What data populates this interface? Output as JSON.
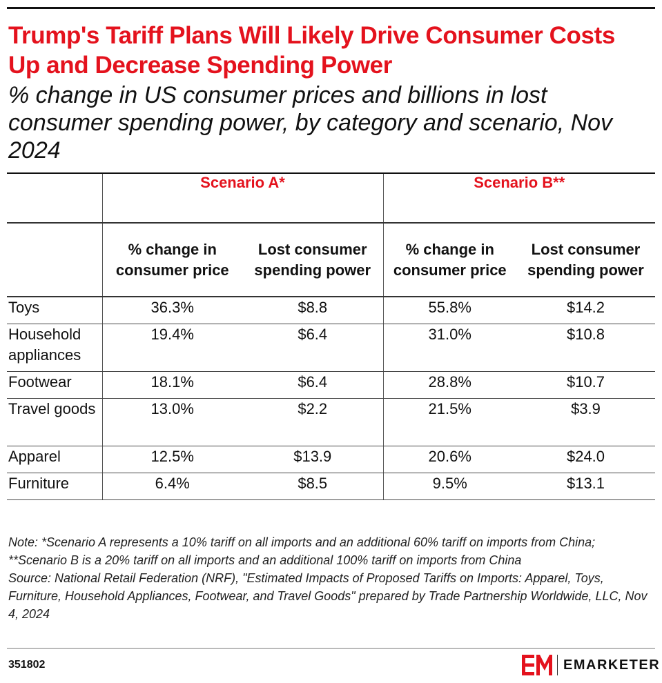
{
  "header": {
    "title": "Trump's Tariff Plans Will Likely Drive Consumer Costs Up and Decrease Spending Power",
    "subtitle": "% change in US consumer prices and billions in lost consumer spending power, by category and scenario, Nov 2024"
  },
  "chart_data": {
    "type": "table",
    "title": "Trump's Tariff Plans Will Likely Drive Consumer Costs Up and Decrease Spending Power",
    "subtitle": "% change in US consumer prices and billions in lost consumer spending power, by category and scenario, Nov 2024",
    "scenarios": [
      "Scenario A*",
      "Scenario B**"
    ],
    "columns": [
      "% change in consumer price",
      "Lost consumer spending power",
      "% change in consumer price",
      "Lost consumer spending power"
    ],
    "rows": [
      {
        "category": "Toys",
        "values": [
          "36.3%",
          "$8.8",
          "55.8%",
          "$14.2"
        ]
      },
      {
        "category": "Household appliances",
        "values": [
          "19.4%",
          "$6.4",
          "31.0%",
          "$10.8"
        ]
      },
      {
        "category": "Footwear",
        "values": [
          "18.1%",
          "$6.4",
          "28.8%",
          "$10.7"
        ]
      },
      {
        "category": "Travel goods",
        "values": [
          "13.0%",
          "$2.2",
          "21.5%",
          "$3.9"
        ]
      },
      {
        "category": "Apparel",
        "values": [
          "12.5%",
          "$13.9",
          "20.6%",
          "$24.0"
        ]
      },
      {
        "category": "Furniture",
        "values": [
          "6.4%",
          "$8.5",
          "9.5%",
          "$13.1"
        ]
      }
    ]
  },
  "footer": {
    "note": "Note: *Scenario A represents a 10% tariff on all imports and an additional 60% tariff on imports from China; **Scenario B is a 20% tariff on all imports and an additional 100% tariff on imports from China",
    "source": "Source: National Retail Federation (NRF), \"Estimated Impacts of Proposed Tariffs on Imports: Apparel, Toys, Furniture, Household Appliances, Footwear, and Travel Goods\" prepared by Trade Partnership Worldwide, LLC, Nov 4, 2024",
    "chart_id": "351802",
    "brand": "EMARKETER"
  },
  "colors": {
    "accent": "#e4121d",
    "text": "#111111"
  }
}
